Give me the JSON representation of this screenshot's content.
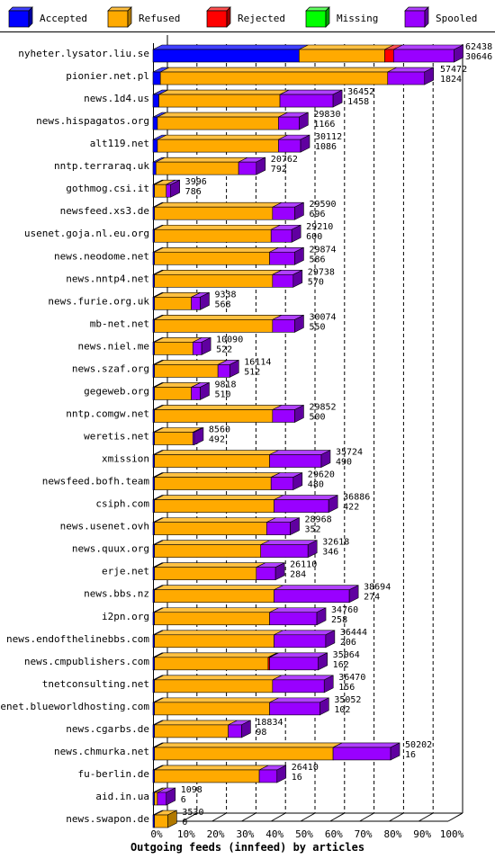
{
  "chart_data": {
    "type": "bar",
    "orientation": "horizontal",
    "stacked": true,
    "three_d": true,
    "xlabel": "Outgoing feeds (innfeed) by articles",
    "x_ticks": [
      "0%",
      "10%",
      "20%",
      "30%",
      "40%",
      "50%",
      "60%",
      "70%",
      "80%",
      "90%",
      "100%"
    ],
    "xlim": [
      0,
      100
    ],
    "grid": true,
    "legend_position": "top",
    "series": [
      {
        "name": "Accepted",
        "color": "#0000ff",
        "side": "#00009f",
        "top": "#4040ff"
      },
      {
        "name": "Refused",
        "color": "#ffaa00",
        "side": "#b07800",
        "top": "#ffc040"
      },
      {
        "name": "Rejected",
        "color": "#ff0000",
        "side": "#a00000",
        "top": "#ff5050"
      },
      {
        "name": "Missing",
        "color": "#00ff00",
        "side": "#00a000",
        "top": "#60ff60"
      },
      {
        "name": "Spooled",
        "color": "#9900ff",
        "side": "#6000a0",
        "top": "#b040ff"
      }
    ],
    "categories": [
      "nyheter.lysator.liu.se",
      "pionier.net.pl",
      "news.1d4.us",
      "news.hispagatos.org",
      "alt119.net",
      "nntp.terraraq.uk",
      "gothmog.csi.it",
      "newsfeed.xs3.de",
      "usenet.goja.nl.eu.org",
      "news.neodome.net",
      "news.nntp4.net",
      "news.furie.org.uk",
      "mb-net.net",
      "news.niel.me",
      "news.szaf.org",
      "gegeweb.org",
      "nntp.comgw.net",
      "weretis.net",
      "xmission",
      "newsfeed.bofh.team",
      "csiph.com",
      "news.usenet.ovh",
      "news.quux.org",
      "erje.net",
      "news.bbs.nz",
      "i2pn.org",
      "news.endofthelinebbs.com",
      "news.cmpublishers.com",
      "tnetconsulting.net",
      "usenet.blueworldhosting.com",
      "news.cgarbs.de",
      "news.chmurka.net",
      "fu-berlin.de",
      "aid.in.ua",
      "news.swapon.de"
    ],
    "value_labels_top": [
      "62438",
      "57472",
      "36452",
      "29830",
      "30112",
      "20762",
      "3996",
      "29590",
      "29210",
      "29874",
      "29738",
      "9338",
      "30074",
      "10090",
      "16114",
      "9818",
      "29852",
      "8560",
      "35724",
      "29620",
      "36886",
      "28968",
      "32618",
      "26110",
      "38694",
      "34760",
      "36444",
      "35064",
      "36470",
      "35052",
      "18834",
      "50202",
      "26410",
      "1098",
      "3530"
    ],
    "value_labels_bottom": [
      "30646",
      "1824",
      "1458",
      "1166",
      "1086",
      "792",
      "786",
      "696",
      "600",
      "586",
      "570",
      "568",
      "550",
      "522",
      "512",
      "510",
      "500",
      "492",
      "490",
      "480",
      "422",
      "352",
      "346",
      "284",
      "274",
      "258",
      "206",
      "162",
      "156",
      "102",
      "98",
      "16",
      "16",
      "6",
      "0"
    ],
    "bar_percent_values": [
      [
        49.5,
        29.0,
        3.0,
        0,
        20.5
      ],
      [
        2.5,
        77.0,
        0,
        0,
        12.5
      ],
      [
        2.0,
        41.0,
        0,
        0,
        18.0
      ],
      [
        1.5,
        41.0,
        0,
        0,
        7.0
      ],
      [
        1.5,
        41.0,
        0,
        0,
        7.5
      ],
      [
        1.0,
        28.0,
        0,
        0,
        6.0
      ],
      [
        0.5,
        4.0,
        0,
        0,
        1.5
      ],
      [
        0.5,
        40.0,
        0,
        0,
        7.5
      ],
      [
        0.5,
        39.5,
        0,
        0,
        7.0
      ],
      [
        0.5,
        39.0,
        0,
        0,
        8.5
      ],
      [
        0.5,
        40.0,
        0,
        0,
        7.0
      ],
      [
        0.5,
        12.5,
        0,
        0,
        3.0
      ],
      [
        0.5,
        40.0,
        0,
        0,
        7.5
      ],
      [
        0.5,
        13.0,
        0,
        0,
        3.0
      ],
      [
        0.5,
        21.5,
        0,
        0,
        4.0
      ],
      [
        0.5,
        12.5,
        0,
        0,
        3.0
      ],
      [
        0.5,
        40.0,
        0,
        0,
        7.5
      ],
      [
        0.5,
        13.0,
        0,
        0,
        0.5
      ],
      [
        0.5,
        39.0,
        0,
        0,
        17.5
      ],
      [
        0.5,
        39.5,
        0,
        0,
        7.5
      ],
      [
        0.5,
        40.5,
        0,
        0,
        18.5
      ],
      [
        0.5,
        38.0,
        0,
        0,
        8.0
      ],
      [
        0.5,
        36.0,
        0,
        0,
        16.0
      ],
      [
        0.5,
        34.5,
        0,
        0,
        6.5
      ],
      [
        0.5,
        40.5,
        0,
        0,
        25.5
      ],
      [
        0.5,
        39.0,
        0,
        0,
        16.0
      ],
      [
        0.5,
        40.5,
        0,
        0,
        17.5
      ],
      [
        0.5,
        38.5,
        0.5,
        0,
        16.5
      ],
      [
        0.5,
        40.0,
        0,
        0,
        17.5
      ],
      [
        0.5,
        39.0,
        0,
        0,
        17.0
      ],
      [
        0.5,
        25.0,
        0,
        0,
        4.5
      ],
      [
        0.5,
        60.5,
        0,
        0,
        19.5
      ],
      [
        0.5,
        35.5,
        0,
        0,
        6.0
      ],
      [
        0.5,
        1.0,
        0,
        0,
        3.0
      ],
      [
        0.5,
        4.5,
        0,
        0,
        0
      ]
    ]
  }
}
